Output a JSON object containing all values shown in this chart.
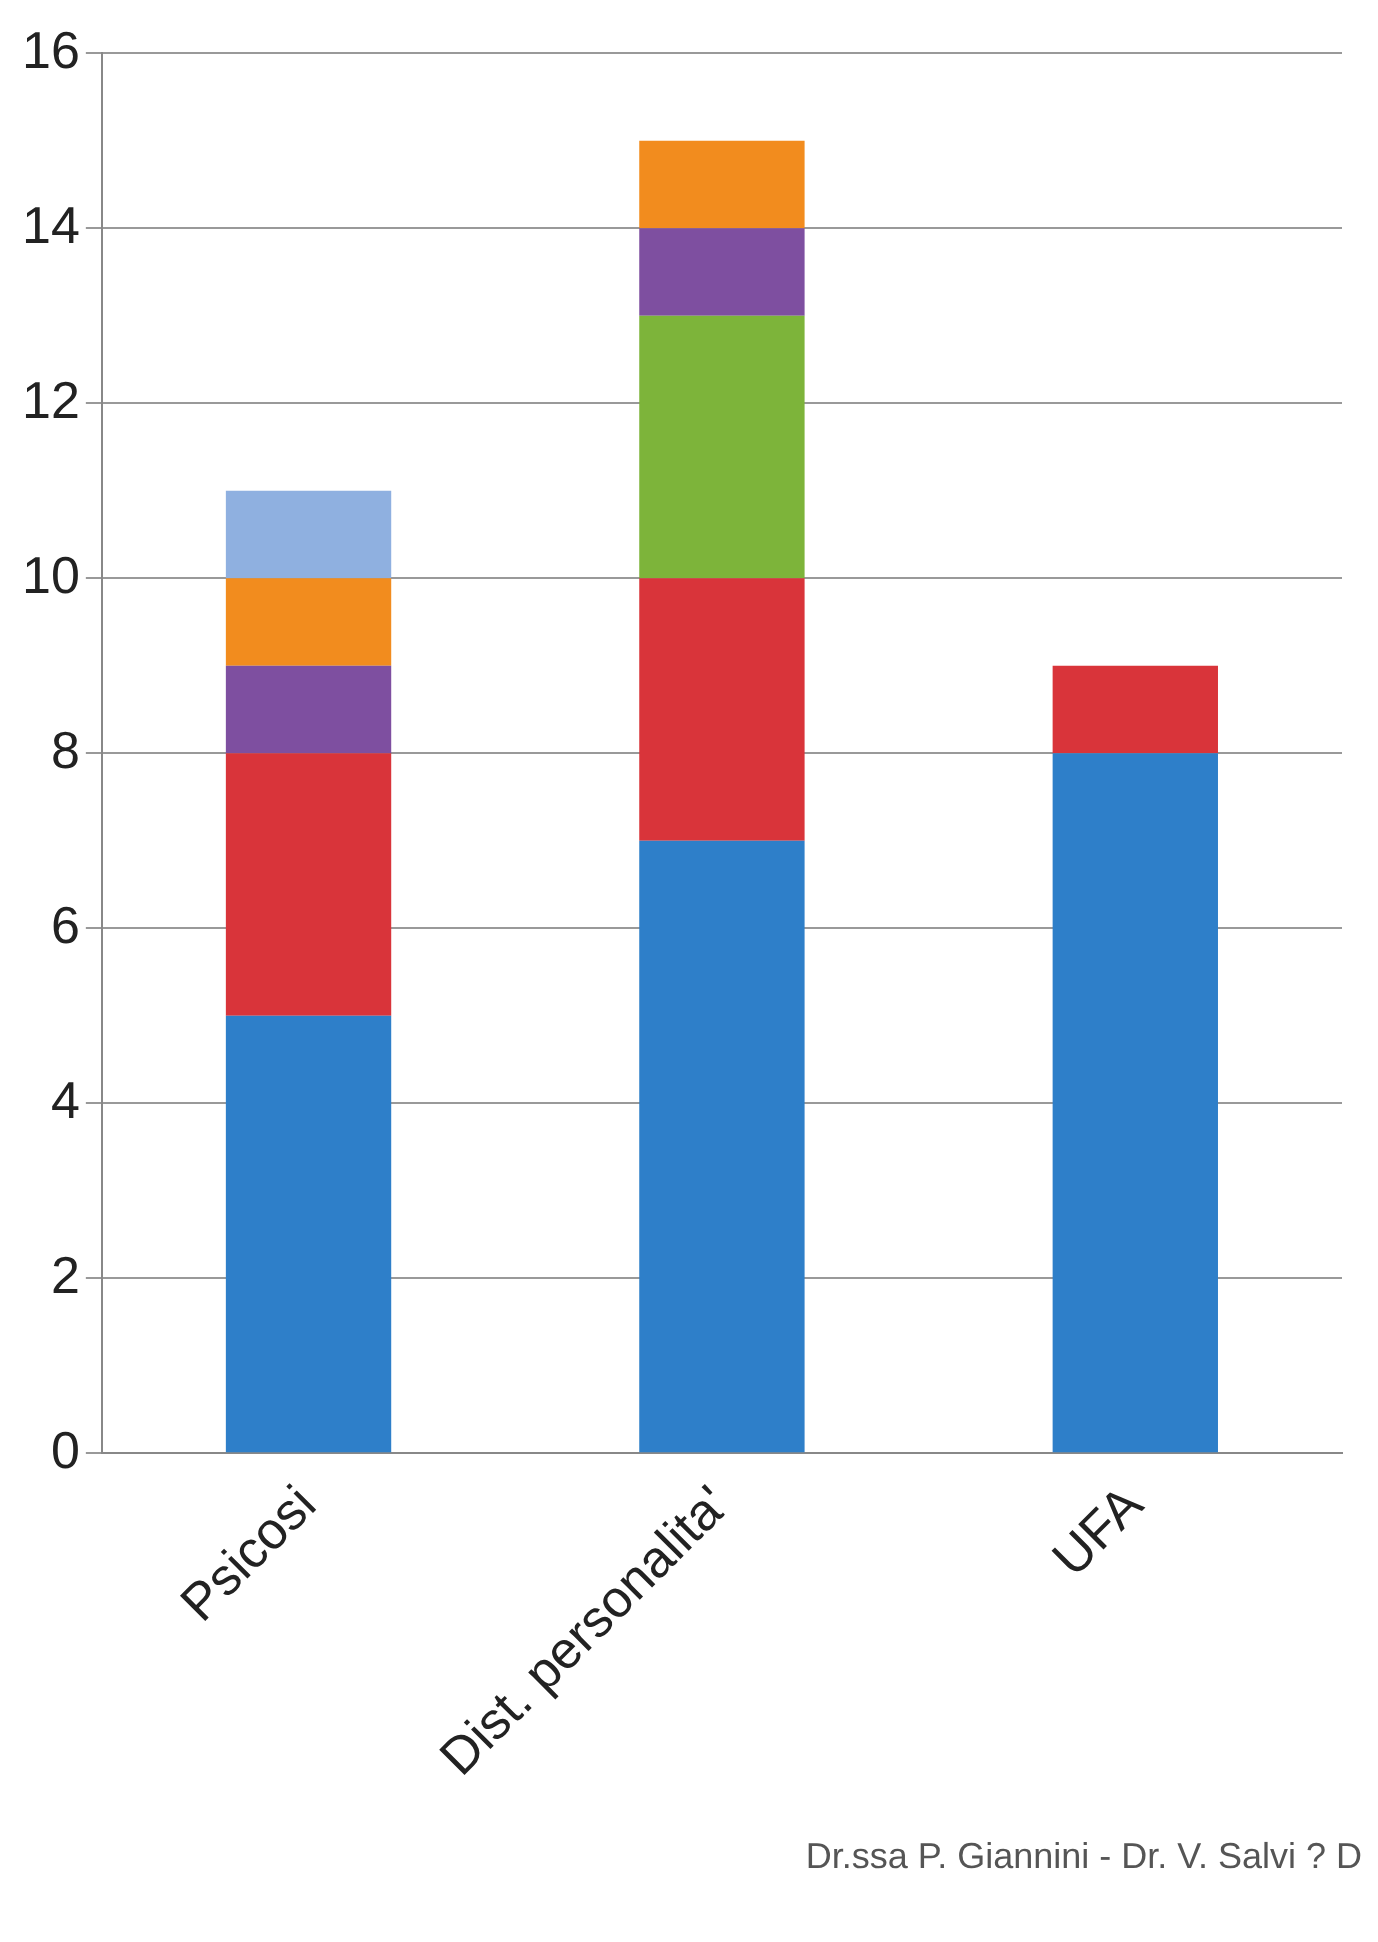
{
  "chart_data": {
    "type": "bar",
    "stacked": true,
    "categories": [
      "Psicosi",
      "Dist. personalita'",
      "UFA"
    ],
    "series": [
      {
        "color": "#2e7fc9",
        "values": [
          5,
          7,
          8
        ]
      },
      {
        "color": "#d9343a",
        "values": [
          3,
          3,
          1
        ]
      },
      {
        "color": "#7db43a",
        "values": [
          null,
          3,
          null
        ]
      },
      {
        "color": "#7e4fa0",
        "values": [
          1,
          1,
          null
        ]
      },
      {
        "color": "#f28c1e",
        "values": [
          1,
          1,
          null
        ]
      },
      {
        "color": "#8fb0e0",
        "values": [
          1,
          null,
          null
        ]
      }
    ],
    "ylim": [
      0,
      16
    ],
    "yticks": [
      0,
      2,
      4,
      6,
      8,
      10,
      12,
      14,
      16
    ],
    "grid": "y",
    "legend": false,
    "annotations": [
      "Dr.ssa P. Giannini -  Dr. V. Salvi ? D"
    ]
  }
}
